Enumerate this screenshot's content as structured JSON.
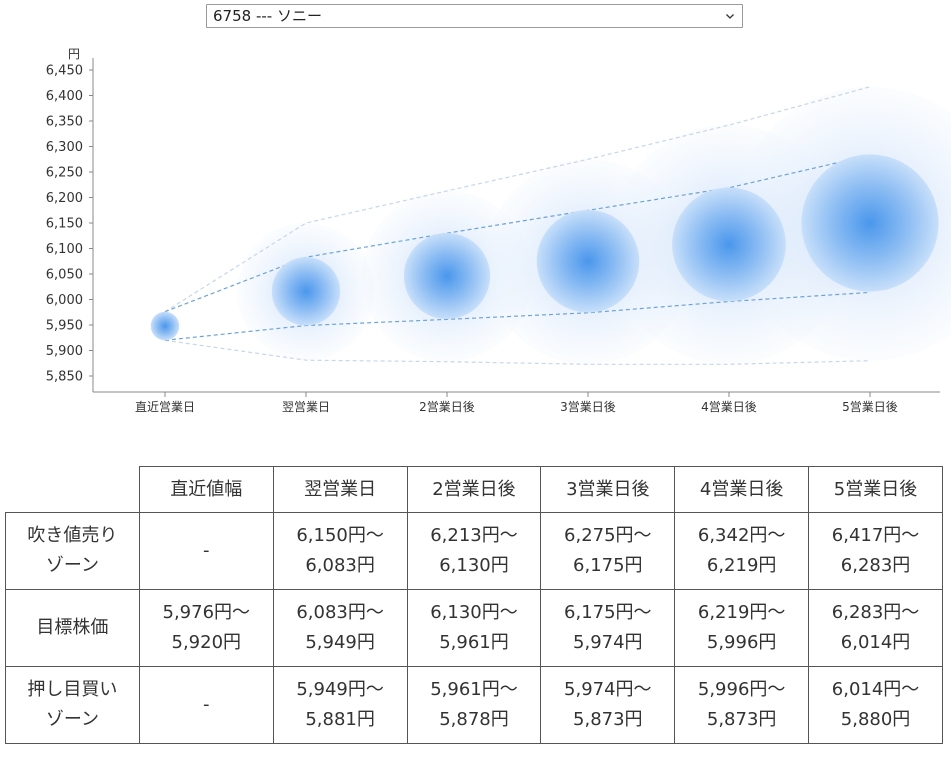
{
  "stock_select": {
    "value": "6758 --- ソニー",
    "icon": "chevron-down-icon"
  },
  "chart_data": {
    "type": "scatter",
    "y_unit": "円",
    "categories": [
      "直近営業日",
      "翌営業日",
      "2営業日後",
      "3営業日後",
      "4営業日後",
      "5営業日後"
    ],
    "yticks": [
      "6,450",
      "6,400",
      "6,350",
      "6,300",
      "6,250",
      "6,200",
      "6,150",
      "6,100",
      "6,050",
      "6,000",
      "5,950",
      "5,900",
      "5,850"
    ],
    "ylim": [
      5820,
      6460
    ],
    "centers": [
      5948,
      6016,
      6046,
      6075,
      6108,
      6150
    ],
    "target_range": {
      "high": [
        5976,
        6083,
        6130,
        6175,
        6219,
        6283
      ],
      "low": [
        5920,
        5949,
        5961,
        5974,
        5996,
        6014
      ]
    },
    "outer_range": {
      "high": [
        5976,
        6150,
        6213,
        6275,
        6342,
        6417
      ],
      "low": [
        5920,
        5881,
        5878,
        5873,
        5873,
        5880
      ]
    },
    "colors": {
      "core": "#3d8ee8",
      "halo": "#dbe9fb",
      "inner_line": "#6fa3d6",
      "outer_line": "#c5d7ea",
      "axis": "#888888"
    },
    "grid": false,
    "legend": "none"
  },
  "table": {
    "headers": [
      "直近値幅",
      "翌営業日",
      "2営業日後",
      "3営業日後",
      "4営業日後",
      "5営業日後"
    ],
    "rows": [
      {
        "label": [
          "吹き値売り",
          "ゾーン"
        ],
        "cells": [
          [
            "-"
          ],
          [
            "6,150円～",
            "6,083円"
          ],
          [
            "6,213円～",
            "6,130円"
          ],
          [
            "6,275円～",
            "6,175円"
          ],
          [
            "6,342円～",
            "6,219円"
          ],
          [
            "6,417円～",
            "6,283円"
          ]
        ]
      },
      {
        "label": [
          "目標株価"
        ],
        "cells": [
          [
            "5,976円～",
            "5,920円"
          ],
          [
            "6,083円～",
            "5,949円"
          ],
          [
            "6,130円～",
            "5,961円"
          ],
          [
            "6,175円～",
            "5,974円"
          ],
          [
            "6,219円～",
            "5,996円"
          ],
          [
            "6,283円～",
            "6,014円"
          ]
        ]
      },
      {
        "label": [
          "押し目買い",
          "ゾーン"
        ],
        "cells": [
          [
            "-"
          ],
          [
            "5,949円～",
            "5,881円"
          ],
          [
            "5,961円～",
            "5,878円"
          ],
          [
            "5,974円～",
            "5,873円"
          ],
          [
            "5,996円～",
            "5,873円"
          ],
          [
            "6,014円～",
            "5,880円"
          ]
        ]
      }
    ]
  }
}
